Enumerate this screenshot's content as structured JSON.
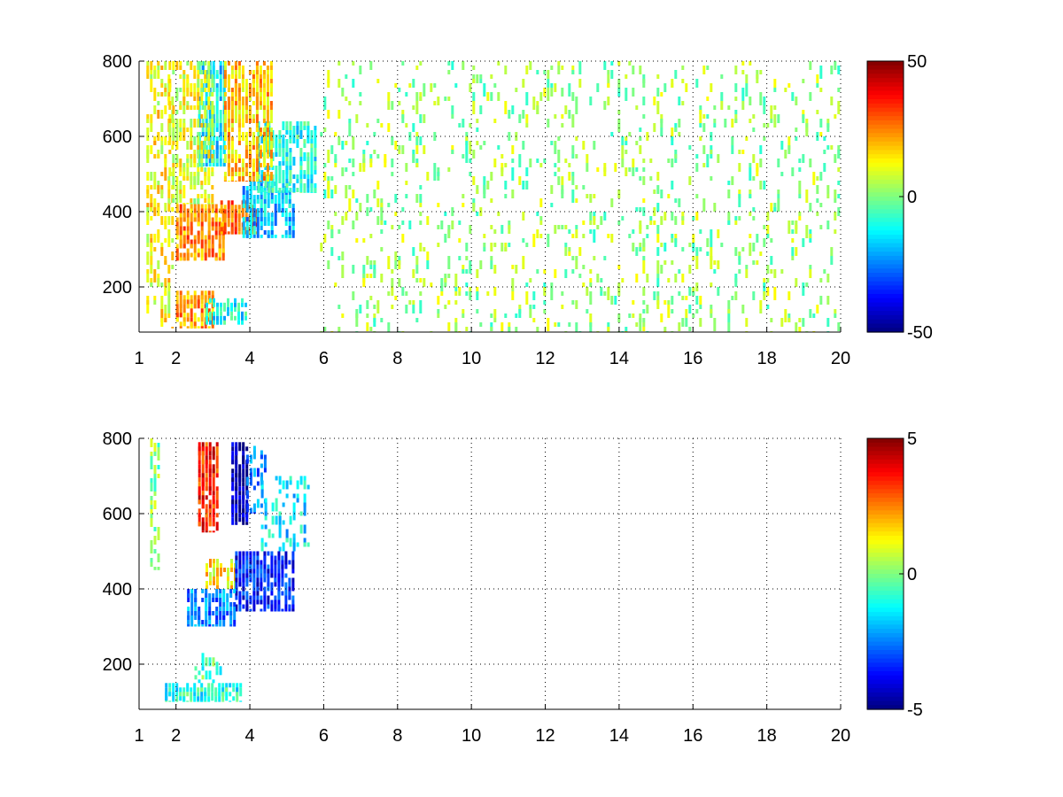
{
  "chart_data": [
    {
      "type": "heatmap",
      "title": "",
      "xlabel": "",
      "ylabel": "",
      "xlim": [
        1,
        20
      ],
      "ylim": [
        80,
        800
      ],
      "xticks": [
        1,
        2,
        4,
        6,
        8,
        10,
        12,
        14,
        16,
        18,
        20
      ],
      "xtick_labels": [
        "1",
        "2",
        "4",
        "6",
        "8",
        "10",
        "12",
        "14",
        "16",
        "18",
        "20"
      ],
      "yticks": [
        200,
        400,
        600,
        800
      ],
      "ytick_labels": [
        "200",
        "400",
        "600",
        "800"
      ],
      "grid": true,
      "colormap": "jet",
      "clim": [
        -50,
        50
      ],
      "colorbar_ticks": [
        50,
        0,
        -50
      ],
      "colorbar_labels": [
        "50",
        "0",
        "-50"
      ],
      "regions": [
        {
          "x": [
            1.2,
            1.9
          ],
          "y": [
            90,
            800
          ],
          "value": 12,
          "density": 0.35
        },
        {
          "x": [
            2.0,
            3.0
          ],
          "y": [
            90,
            190
          ],
          "value": 22,
          "density": 0.75
        },
        {
          "x": [
            2.8,
            3.9
          ],
          "y": [
            100,
            170
          ],
          "value": -12,
          "density": 0.6
        },
        {
          "x": [
            2.0,
            3.3
          ],
          "y": [
            270,
            420
          ],
          "value": 24,
          "density": 0.7
        },
        {
          "x": [
            3.2,
            4.2
          ],
          "y": [
            340,
            430
          ],
          "value": 28,
          "density": 0.7
        },
        {
          "x": [
            3.8,
            5.2
          ],
          "y": [
            330,
            480
          ],
          "value": -18,
          "density": 0.7
        },
        {
          "x": [
            4.2,
            5.8
          ],
          "y": [
            450,
            640
          ],
          "value": -10,
          "density": 0.6
        },
        {
          "x": [
            2.6,
            3.3
          ],
          "y": [
            520,
            800
          ],
          "value": -14,
          "density": 0.7
        },
        {
          "x": [
            3.3,
            4.6
          ],
          "y": [
            480,
            800
          ],
          "value": 18,
          "density": 0.7
        },
        {
          "x": [
            1.8,
            3.0
          ],
          "y": [
            420,
            800
          ],
          "value": 10,
          "density": 0.5
        },
        {
          "x": [
            5.9,
            20.0
          ],
          "y": [
            80,
            800
          ],
          "value": 2,
          "density": 0.12
        }
      ]
    },
    {
      "type": "heatmap",
      "title": "",
      "xlabel": "",
      "ylabel": "",
      "xlim": [
        1,
        20
      ],
      "ylim": [
        80,
        800
      ],
      "xticks": [
        1,
        2,
        4,
        6,
        8,
        10,
        12,
        14,
        16,
        18,
        20
      ],
      "xtick_labels": [
        "1",
        "2",
        "4",
        "6",
        "8",
        "10",
        "12",
        "14",
        "16",
        "18",
        "20"
      ],
      "yticks": [
        200,
        400,
        600,
        800
      ],
      "ytick_labels": [
        "200",
        "400",
        "600",
        "800"
      ],
      "grid": true,
      "colormap": "jet",
      "clim": [
        -5,
        5
      ],
      "colorbar_ticks": [
        5,
        0,
        -5
      ],
      "colorbar_labels": [
        "5",
        "0",
        "-5"
      ],
      "regions": [
        {
          "x": [
            1.3,
            1.5
          ],
          "y": [
            450,
            800
          ],
          "value": 0,
          "density": 0.4
        },
        {
          "x": [
            2.6,
            3.1
          ],
          "y": [
            550,
            790
          ],
          "value": 3.5,
          "density": 0.75
        },
        {
          "x": [
            3.5,
            3.9
          ],
          "y": [
            570,
            790
          ],
          "value": -4.5,
          "density": 0.7
        },
        {
          "x": [
            3.9,
            4.4
          ],
          "y": [
            600,
            780
          ],
          "value": -2.5,
          "density": 0.4
        },
        {
          "x": [
            2.8,
            3.6
          ],
          "y": [
            400,
            480
          ],
          "value": 1.5,
          "density": 0.5
        },
        {
          "x": [
            3.6,
            5.2
          ],
          "y": [
            340,
            500
          ],
          "value": -3.5,
          "density": 0.7
        },
        {
          "x": [
            2.3,
            3.6
          ],
          "y": [
            300,
            400
          ],
          "value": -2.5,
          "density": 0.65
        },
        {
          "x": [
            4.3,
            5.6
          ],
          "y": [
            500,
            700
          ],
          "value": -1.5,
          "density": 0.3
        },
        {
          "x": [
            1.7,
            3.8
          ],
          "y": [
            100,
            150
          ],
          "value": -1,
          "density": 0.75
        },
        {
          "x": [
            2.5,
            3.2
          ],
          "y": [
            150,
            230
          ],
          "value": -0.5,
          "density": 0.3
        }
      ]
    }
  ]
}
